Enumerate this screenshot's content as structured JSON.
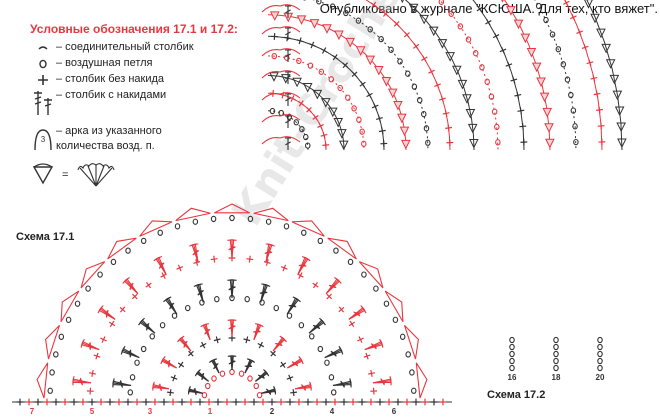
{
  "publication_note": "Опубликовано в журнале \"КСЮША. Для тех, кто вяжет\".",
  "legend": {
    "title": "Условные обозначения 17.1 и 17.2:",
    "items": [
      {
        "icon": "slip-stitch-icon",
        "label": "– соединительный столбик"
      },
      {
        "icon": "chain-stitch-icon",
        "label": "– воздушная петля"
      },
      {
        "icon": "single-crochet-icon",
        "label": "– столбик без накида"
      },
      {
        "icon": "double-crochet-icon",
        "label": "– столбик с накидами"
      },
      {
        "icon": "arch-icon",
        "symbol": "3",
        "label_line1": "– арка из указанного",
        "label_line2": "количества возд. п."
      },
      {
        "icon": "picot-fan-icon",
        "symbol": "="
      }
    ]
  },
  "scheme_171": {
    "label": "Схема 17.1",
    "row_numbers_left": [
      "7",
      "5",
      "3",
      "1"
    ],
    "row_numbers_right": [
      "2",
      "4",
      "6"
    ]
  },
  "scheme_172": {
    "label": "Схема 17.2",
    "column_numbers": [
      "16",
      "18",
      "20"
    ]
  },
  "watermark": "Knit-Crochet.ru",
  "colors": {
    "red": "#e8373f",
    "dark": "#333333",
    "title_red": "#e8373f"
  }
}
